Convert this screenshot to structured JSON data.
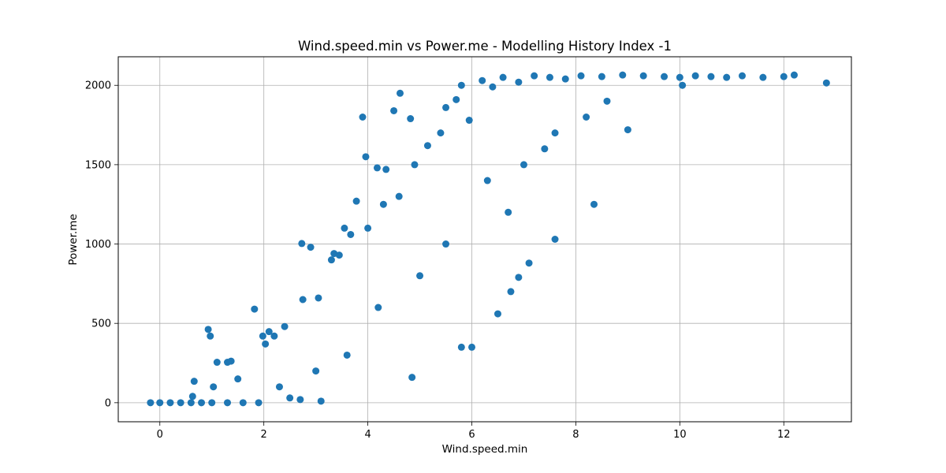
{
  "chart_data": {
    "type": "scatter",
    "title": "Wind.speed.min vs Power.me - Modelling History Index -1",
    "xlabel": "Wind.speed.min",
    "ylabel": "Power.me",
    "xlim": [
      -0.8,
      13.3
    ],
    "ylim": [
      -120,
      2180
    ],
    "xticks": [
      0,
      2,
      4,
      6,
      8,
      10,
      12
    ],
    "yticks": [
      0,
      500,
      1000,
      1500,
      2000
    ],
    "grid": true,
    "marker_color": "#1f77b4",
    "series": [
      {
        "points": [
          [
            -0.18,
            0
          ],
          [
            0.0,
            0
          ],
          [
            0.2,
            0
          ],
          [
            0.4,
            0
          ],
          [
            0.6,
            0
          ],
          [
            0.8,
            0
          ],
          [
            1.0,
            0
          ],
          [
            1.3,
            0
          ],
          [
            1.6,
            0
          ],
          [
            1.9,
            0
          ],
          [
            0.63,
            40
          ],
          [
            0.66,
            135
          ],
          [
            0.93,
            462
          ],
          [
            0.97,
            420
          ],
          [
            1.1,
            255
          ],
          [
            1.3,
            255
          ],
          [
            1.37,
            262
          ],
          [
            1.03,
            100
          ],
          [
            1.5,
            150
          ],
          [
            1.82,
            590
          ],
          [
            1.98,
            420
          ],
          [
            2.1,
            448
          ],
          [
            2.03,
            370
          ],
          [
            2.2,
            420
          ],
          [
            2.4,
            480
          ],
          [
            2.73,
            1003
          ],
          [
            2.9,
            980
          ],
          [
            2.75,
            650
          ],
          [
            3.05,
            660
          ],
          [
            3.3,
            900
          ],
          [
            3.35,
            940
          ],
          [
            3.45,
            930
          ],
          [
            3.55,
            1100
          ],
          [
            3.67,
            1060
          ],
          [
            3.78,
            1270
          ],
          [
            3.9,
            1800
          ],
          [
            3.96,
            1550
          ],
          [
            4.0,
            1100
          ],
          [
            4.18,
            1480
          ],
          [
            4.35,
            1470
          ],
          [
            4.5,
            1840
          ],
          [
            4.62,
            1950
          ],
          [
            4.82,
            1790
          ],
          [
            4.3,
            1250
          ],
          [
            4.6,
            1300
          ],
          [
            4.9,
            1500
          ],
          [
            5.15,
            1620
          ],
          [
            5.4,
            1700
          ],
          [
            5.5,
            1860
          ],
          [
            5.7,
            1910
          ],
          [
            5.8,
            2000
          ],
          [
            5.95,
            1780
          ],
          [
            6.2,
            2030
          ],
          [
            6.4,
            1990
          ],
          [
            6.6,
            2050
          ],
          [
            6.9,
            2020
          ],
          [
            7.2,
            2060
          ],
          [
            7.5,
            2050
          ],
          [
            7.8,
            2040
          ],
          [
            8.1,
            2060
          ],
          [
            8.5,
            2055
          ],
          [
            8.9,
            2065
          ],
          [
            9.3,
            2060
          ],
          [
            9.7,
            2055
          ],
          [
            10.0,
            2050
          ],
          [
            10.3,
            2060
          ],
          [
            10.6,
            2055
          ],
          [
            10.9,
            2050
          ],
          [
            11.2,
            2060
          ],
          [
            11.6,
            2050
          ],
          [
            12.0,
            2055
          ],
          [
            12.2,
            2065
          ],
          [
            12.82,
            2015
          ],
          [
            10.05,
            2000
          ],
          [
            9.0,
            1720
          ],
          [
            8.35,
            1250
          ],
          [
            7.6,
            1030
          ],
          [
            7.1,
            880
          ],
          [
            6.9,
            790
          ],
          [
            6.75,
            700
          ],
          [
            6.5,
            560
          ],
          [
            6.0,
            350
          ],
          [
            5.8,
            350
          ],
          [
            4.85,
            160
          ],
          [
            3.1,
            10
          ],
          [
            2.7,
            20
          ],
          [
            2.5,
            30
          ],
          [
            6.3,
            1400
          ],
          [
            7.0,
            1500
          ],
          [
            7.6,
            1700
          ],
          [
            8.2,
            1800
          ],
          [
            8.6,
            1900
          ],
          [
            5.0,
            800
          ],
          [
            5.5,
            1000
          ],
          [
            4.2,
            600
          ],
          [
            3.6,
            300
          ],
          [
            3.0,
            200
          ],
          [
            2.3,
            100
          ],
          [
            6.7,
            1200
          ],
          [
            7.4,
            1600
          ]
        ]
      }
    ]
  }
}
